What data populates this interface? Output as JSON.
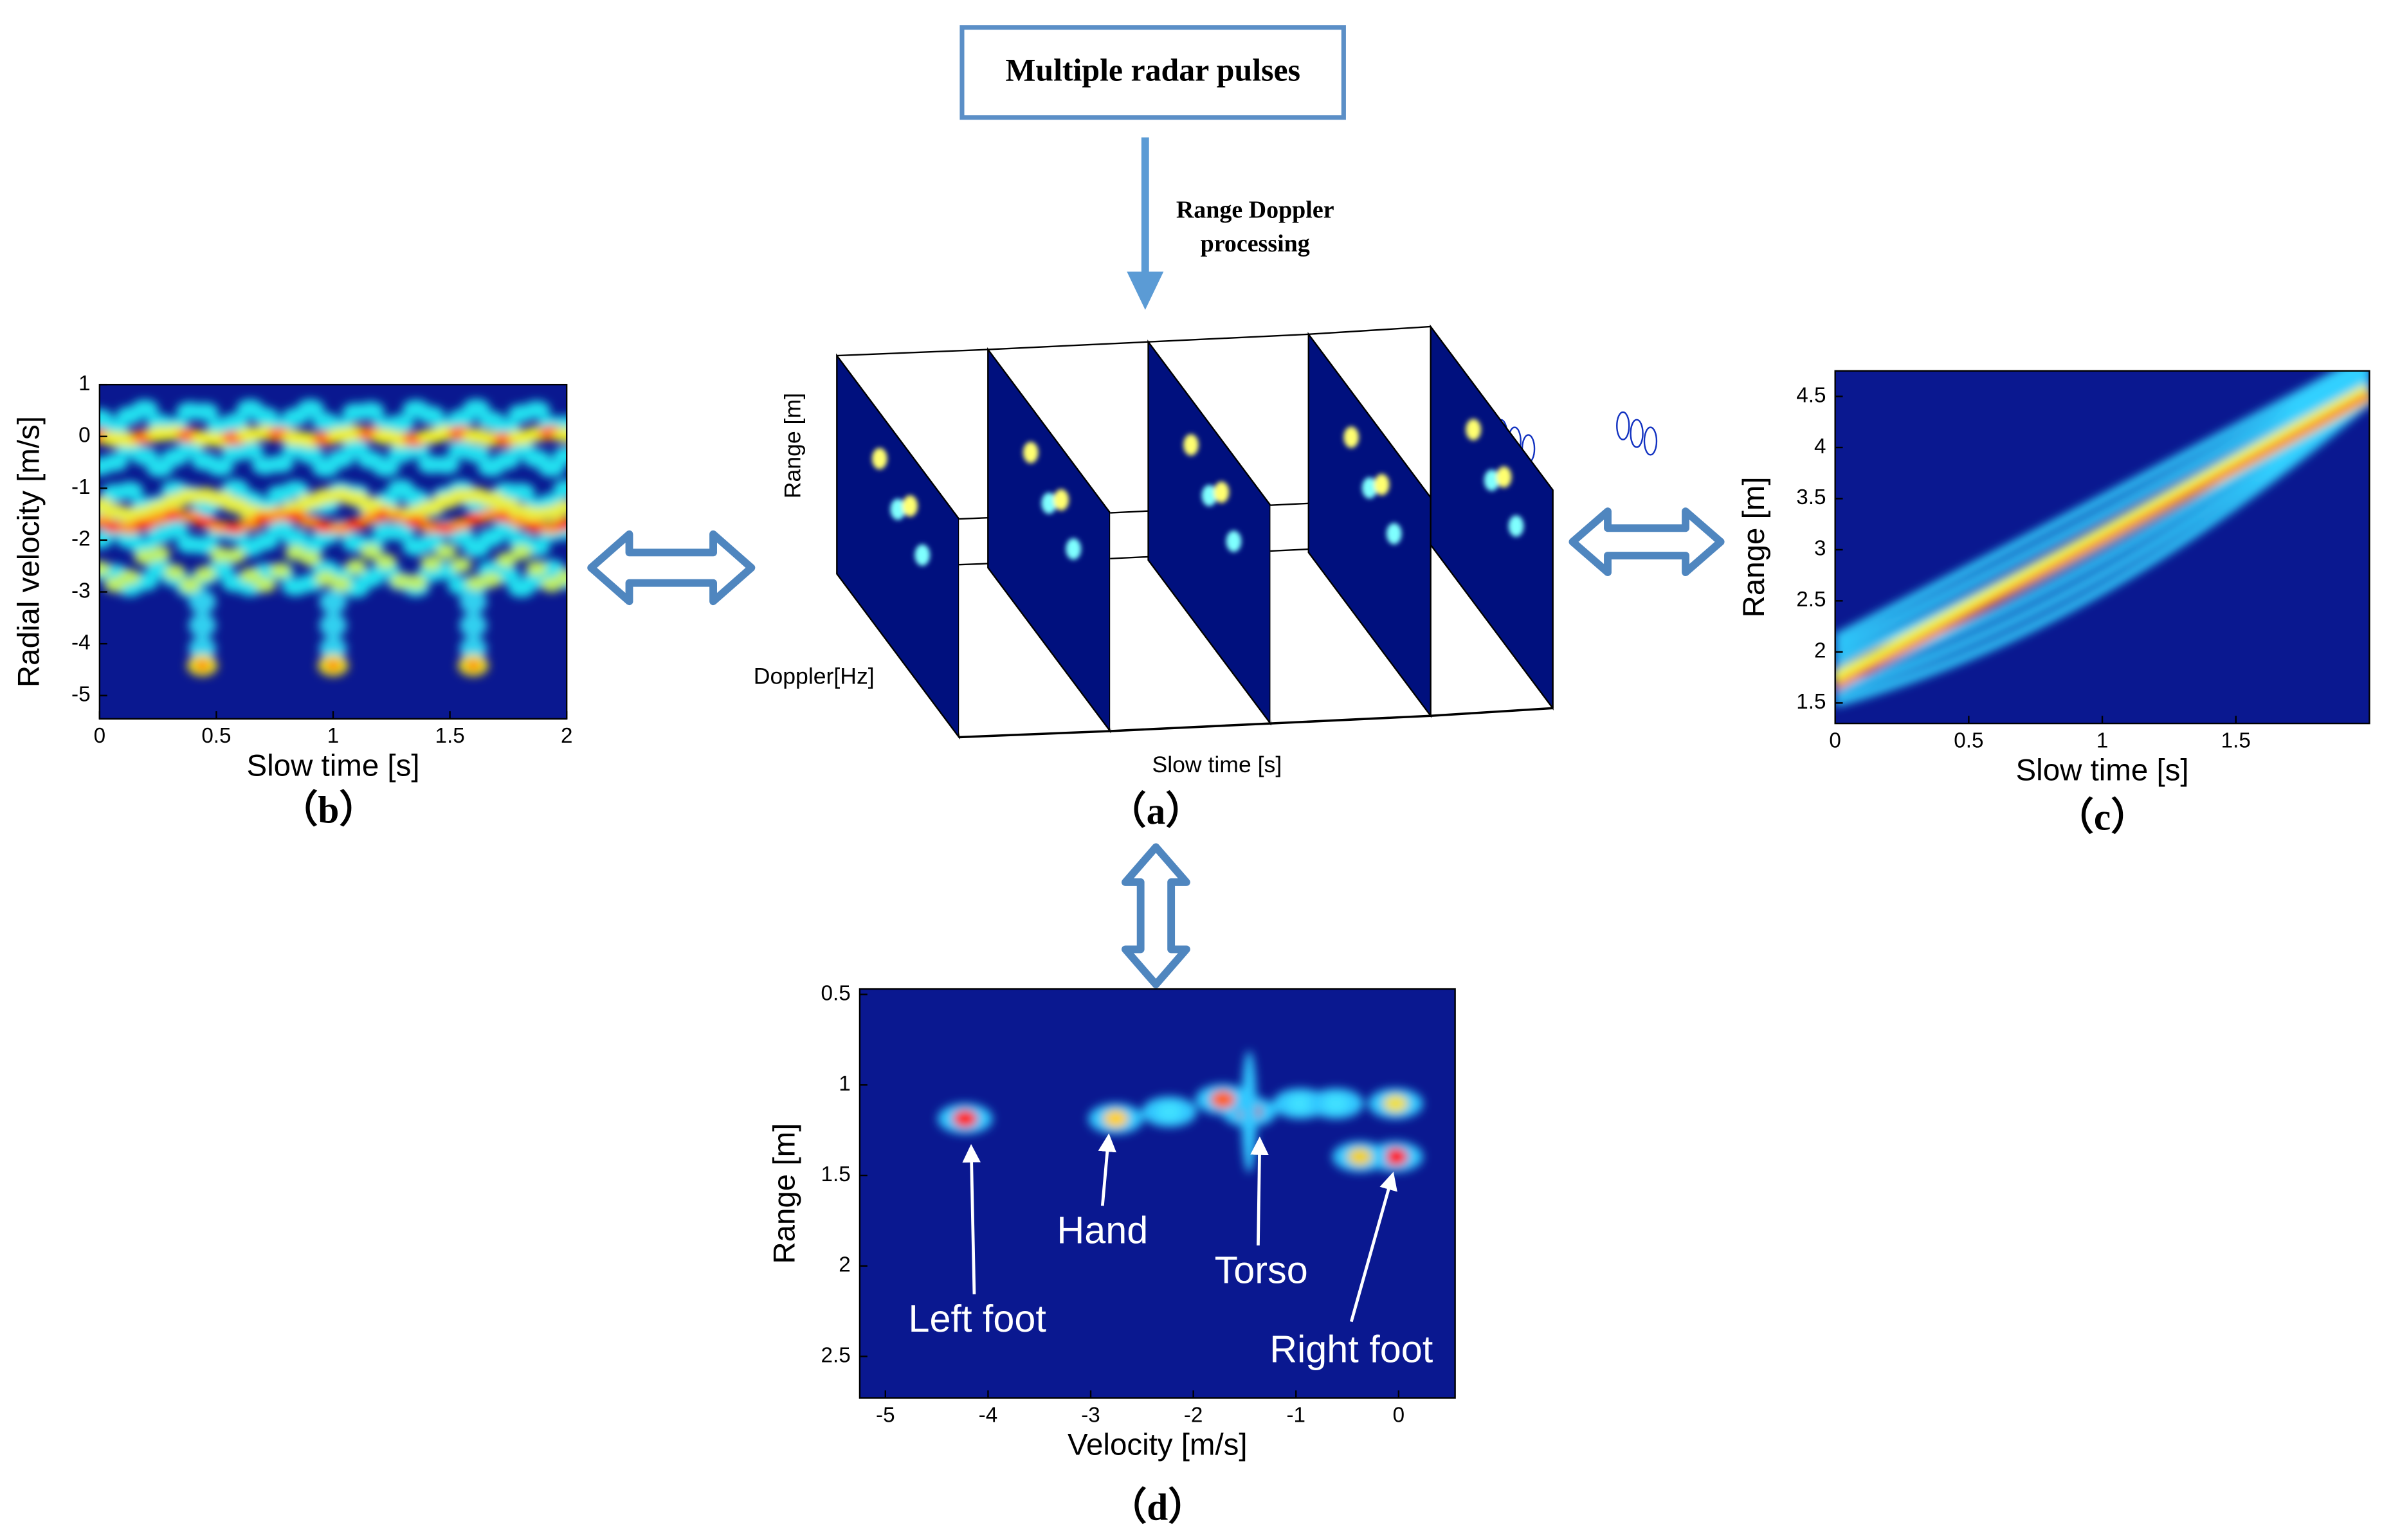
{
  "top_box": "Multiple radar pulses",
  "process_label": [
    "Range Doppler",
    "processing"
  ],
  "panel_a": {
    "caption": "（a）",
    "y_label": "Range [m]",
    "z_label": "Doppler[Hz]",
    "x_label": "Slow time [s]"
  },
  "panel_b": {
    "caption": "（b）",
    "x_label": "Slow time [s]",
    "y_label": "Radial velocity [m/s]",
    "xlim": [
      0,
      2
    ],
    "ylim": [
      -5.45,
      1.0
    ],
    "xticks": [
      0,
      0.5,
      1,
      1.5,
      2
    ],
    "yticks": [
      1,
      0,
      -1,
      -2,
      -3,
      -4,
      -5
    ]
  },
  "panel_c": {
    "caption": "（c）",
    "x_label": "Slow time [s]",
    "y_label": "Range [m]",
    "xlim": [
      0,
      2.0
    ],
    "ylim": [
      1.3,
      4.75
    ],
    "xticks": [
      0,
      0.5,
      1,
      1.5
    ],
    "yticks": [
      1.5,
      2,
      2.5,
      3,
      3.5,
      4,
      4.5
    ]
  },
  "panel_d": {
    "caption": "（d）",
    "x_label": "Velocity [m/s]",
    "y_label": "Range [m]",
    "xlim": [
      -5.25,
      0.55
    ],
    "ylim": [
      0.47,
      2.73
    ],
    "y_inverted": true,
    "xticks": [
      -5,
      -4,
      -3,
      -2,
      -1,
      0
    ],
    "yticks": [
      0.5,
      1,
      1.5,
      2,
      2.5
    ],
    "annotations": [
      "Left foot",
      "Hand",
      "Torso",
      "Right foot"
    ]
  }
}
